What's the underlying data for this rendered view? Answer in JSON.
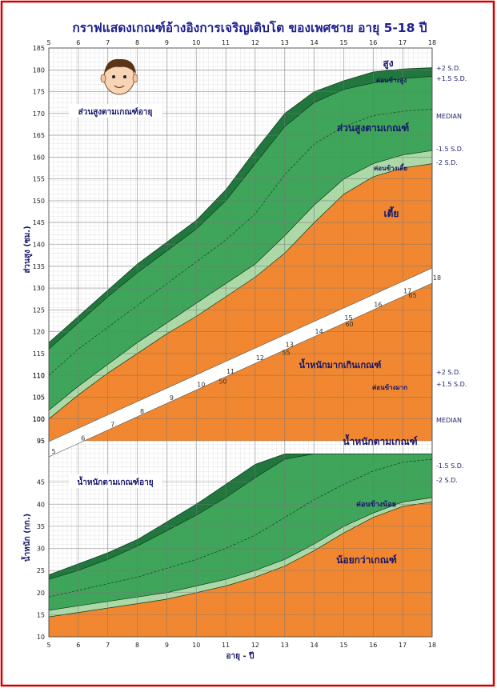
{
  "title": "กราฟแสดงเกณฑ์อ้างอิงการเจริญเติบโต ของเพศชาย อายุ 5-18 ปี",
  "height_chart_label": "ส่วนสูงตามเกณฑ์อายุ",
  "weight_chart_label": "น้ำหนักตามเกณฑ์อายุ",
  "weight_for_height_label": "น้ำหนักมากเกินเกณฑ์",
  "y_label_height": "ส่วนสูง (ซม.)",
  "y_label_weight": "น้ำหนัก (กก.)",
  "x_label": "อายุ - ปี",
  "sd_labels": [
    "+2 S.D.",
    "+1.5 S.D.",
    "MEDIAN",
    "-1.5 S.D.",
    "-2 S.D."
  ],
  "colors": {
    "border": "#d40000",
    "title": "#1f1f8f",
    "orange": "#f07d1e",
    "light_green": "#a6d5a0",
    "green": "#2f9d4c",
    "dark_green": "#0e6b2e",
    "grid": "#9a9a9a"
  },
  "chart_data": [
    {
      "type": "area",
      "title": "ส่วนสูงตามเกณฑ์อายุ",
      "xlabel": "อายุ - ปี",
      "ylabel": "ส่วนสูง (ซม.)",
      "x": [
        5,
        6,
        7,
        8,
        9,
        10,
        11,
        12,
        13,
        14,
        15,
        16,
        17,
        18
      ],
      "xlim": [
        5,
        18
      ],
      "ylim": [
        95,
        185
      ],
      "zone_labels": [
        "สูง",
        "ค่อนข้างสูง",
        "ส่วนสูงตามเกณฑ์",
        "ค่อนข้างเตี้ย",
        "เตี้ย"
      ],
      "series": [
        {
          "name": "+2 S.D.",
          "values": [
            117.5,
            123.5,
            129.5,
            135.5,
            140.5,
            145.5,
            152.5,
            161.5,
            170,
            175,
            177.5,
            179.5,
            180.2,
            180.5
          ]
        },
        {
          "name": "+1.5 S.D.",
          "values": [
            116,
            122,
            128,
            133.5,
            138.5,
            143.5,
            150,
            158.5,
            167,
            172.5,
            175.5,
            177,
            178,
            178.5
          ]
        },
        {
          "name": "MEDIAN",
          "values": [
            110,
            116,
            121,
            126,
            131,
            136,
            141,
            147,
            156,
            163,
            167,
            169.5,
            170.5,
            171
          ]
        },
        {
          "name": "-1.5 S.D.",
          "values": [
            102,
            107.5,
            112.5,
            117.5,
            122,
            126.5,
            131,
            135.5,
            142,
            149,
            155,
            158.5,
            160.5,
            161.5
          ]
        },
        {
          "name": "-2 S.D.",
          "values": [
            100,
            105.5,
            110.5,
            115,
            119.5,
            123.5,
            128,
            132.5,
            138,
            145,
            151.5,
            155.5,
            157.5,
            158.5
          ]
        }
      ]
    },
    {
      "type": "area",
      "title": "น้ำหนักตามเกณฑ์อายุ",
      "xlabel": "อายุ - ปี",
      "ylabel": "น้ำหนัก (กก.)",
      "x": [
        5,
        6,
        7,
        8,
        9,
        10,
        11,
        12,
        13,
        14,
        15,
        16,
        17,
        18
      ],
      "xlim": [
        5,
        18
      ],
      "ylim": [
        10,
        50
      ],
      "zone_labels": [
        "น้ำหนักมากเกินเกณฑ์",
        "ค่อนข้างมาก",
        "น้ำหนักตามเกณฑ์",
        "ค่อนข้างน้อย",
        "น้อยกว่าเกณฑ์"
      ]
    },
    {
      "type": "line",
      "title": "น้ำหนักมากเกินเกณฑ์",
      "age_ticks": [
        5,
        6,
        7,
        8,
        9,
        10,
        11,
        12,
        13,
        14,
        15,
        16,
        17,
        18
      ],
      "weight_ticks": [
        50,
        55,
        60,
        65
      ],
      "secondary_y_ticks": [
        95,
        100,
        105,
        110
      ]
    }
  ],
  "axes": {
    "x_ticks": [
      "5",
      "6",
      "7",
      "8",
      "9",
      "10",
      "11",
      "12",
      "13",
      "14",
      "15",
      "16",
      "17",
      "18"
    ],
    "height_ticks": [
      "95",
      "100",
      "105",
      "110",
      "115",
      "120",
      "125",
      "130",
      "135",
      "140",
      "145",
      "150",
      "155",
      "160",
      "165",
      "170",
      "175",
      "180",
      "185"
    ],
    "weight_ticks": [
      "10",
      "15",
      "20",
      "25",
      "30",
      "35",
      "40",
      "45"
    ],
    "band_age_ticks": [
      "5",
      "6",
      "7",
      "8",
      "9",
      "10",
      "11",
      "12",
      "13",
      "14",
      "15",
      "16",
      "17",
      "18"
    ],
    "band_weight_ticks": [
      "50",
      "55",
      "60",
      "65"
    ],
    "secondary_y_ticks": [
      "95",
      "100",
      "105",
      "110"
    ]
  }
}
